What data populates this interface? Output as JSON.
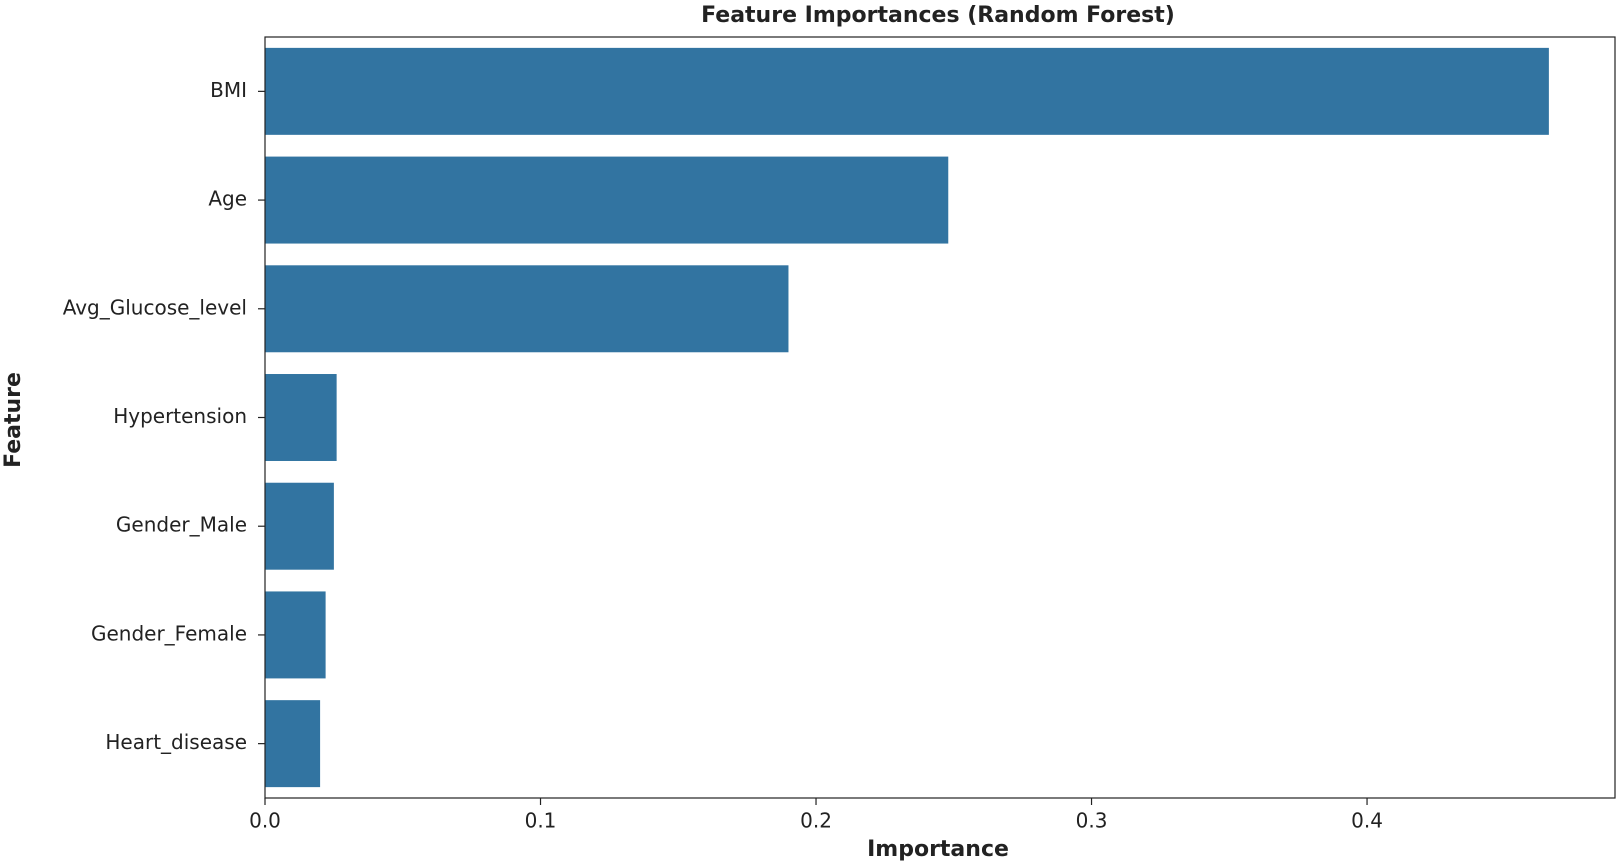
{
  "chart_data": {
    "type": "barh",
    "title": "Feature Importances (Random Forest)",
    "x_label": "Importance",
    "y_label": "Feature",
    "categories": [
      "BMI",
      "Age",
      "Avg_Glucose_level",
      "Hypertension",
      "Gender_Male",
      "Gender_Female",
      "Heart_disease"
    ],
    "values": [
      0.466,
      0.248,
      0.19,
      0.026,
      0.025,
      0.022,
      0.02
    ],
    "color": "#3274a1",
    "xlim": [
      0,
      0.49
    ],
    "xticks": [
      {
        "value": 0,
        "label": "0.0"
      },
      0.1,
      0.2,
      0.3,
      0.4
    ]
  }
}
